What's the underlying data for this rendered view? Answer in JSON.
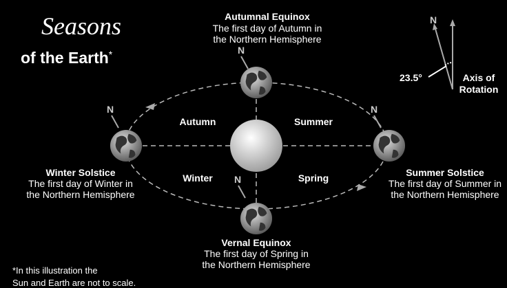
{
  "title": {
    "script": "Seasons",
    "main": "of the Earth",
    "mark": "*"
  },
  "positions": {
    "autumnal": {
      "name": "Autumnal Equinox",
      "lines": [
        "The first day of Autumn in",
        "the Northern Hemisphere"
      ]
    },
    "winter": {
      "name": "Winter Solstice",
      "lines": [
        "The first day of Winter in",
        "the Northern Hemisphere"
      ]
    },
    "summer": {
      "name": "Summer Solstice",
      "lines": [
        "The first day of Summer in",
        "the Northern Hemisphere"
      ]
    },
    "vernal": {
      "name": "Vernal Equinox",
      "lines": [
        "The first day of Spring in",
        "the Northern Hemisphere"
      ]
    }
  },
  "seasons": {
    "autumn": "Autumn",
    "summer": "Summer",
    "winter": "Winter",
    "spring": "Spring"
  },
  "north_labels": [
    "N",
    "N",
    "N",
    "N",
    "N"
  ],
  "axis_inset": {
    "angle": "23.5°",
    "label": [
      "Axis of",
      "Rotation"
    ]
  },
  "footnote": [
    "*In this illustration the",
    "Sun and Earth are not to scale."
  ]
}
